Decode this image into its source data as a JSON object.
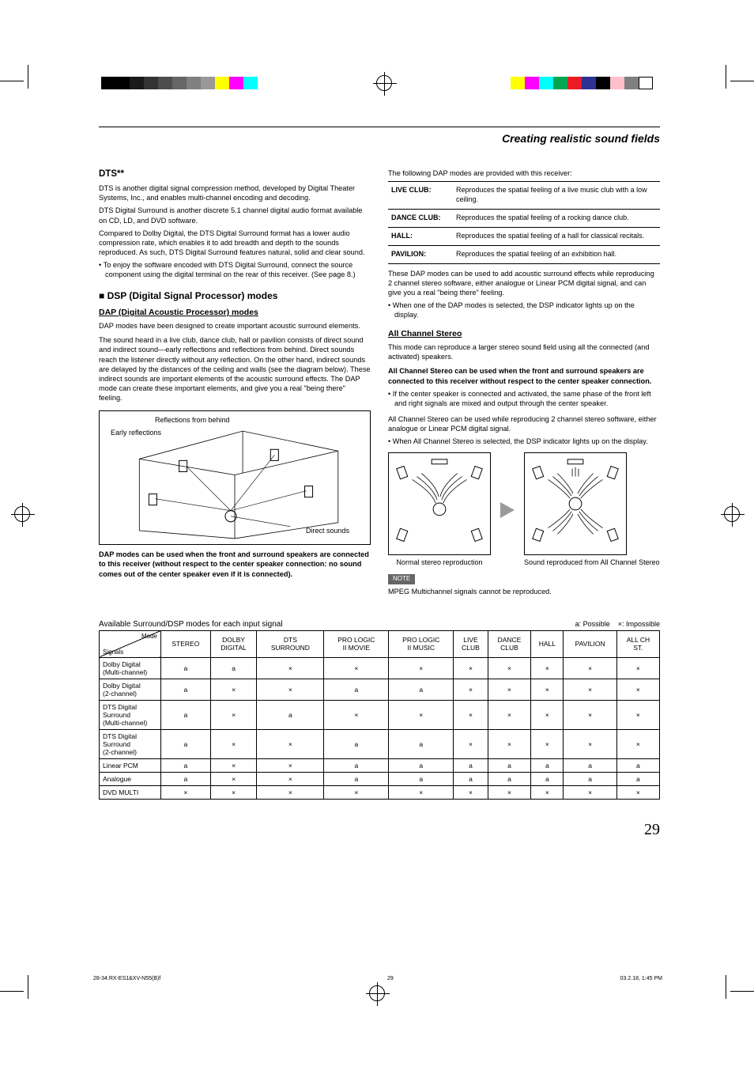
{
  "section_title": "Creating realistic sound fields",
  "left": {
    "dts_heading": "DTS**",
    "dts_p1": "DTS is another digital signal compression method, developed by Digital Theater Systems, Inc., and enables multi-channel encoding and decoding.",
    "dts_p2": "DTS Digital Surround is another discrete  5.1 channel digital audio format available on CD, LD, and DVD software.",
    "dts_p3": "Compared to Dolby Digital, the DTS Digital Surround format has a lower audio compression rate, which enables it to add breadth and depth to the sounds reproduced. As such, DTS Digital Surround features natural, solid and clear sound.",
    "dts_bullet": "• To enjoy the software encoded with DTS Digital Surround, connect the source component using the digital terminal on the rear of this receiver. (See page 8.)",
    "dsp_heading": "■ DSP (Digital Signal Processor) modes",
    "dap_heading": "DAP (Digital Acoustic Processor) modes",
    "dap_p1": "DAP modes have been designed to create important acoustic surround elements.",
    "dap_p2": "The sound heard in a live club, dance club, hall or pavilion consists of direct sound and indirect sound—early reflections and reflections from behind. Direct sounds reach the listener directly without any reflection. On the other hand, indirect sounds are delayed by the distances of the ceiling and walls (see the diagram below). These indirect sounds are important elements of the acoustic surround effects. The DAP mode can create these important elements, and give you a real \"being there\" feeling.",
    "diagram_labels": {
      "refl_behind": "Reflections from behind",
      "early_refl": "Early reflections",
      "direct": "Direct sounds"
    },
    "dap_note": "DAP modes can be used when the front and surround speakers are connected to this receiver (without respect to the center speaker connection: no sound comes out of the center speaker even if it is connected)."
  },
  "right": {
    "intro": "The following DAP modes are provided with this receiver:",
    "modes": [
      {
        "name": "LIVE CLUB:",
        "desc": "Reproduces the spatial feeling of a live music club with a low ceiling."
      },
      {
        "name": "DANCE CLUB:",
        "desc": "Reproduces the spatial feeling of a rocking dance club."
      },
      {
        "name": "HALL:",
        "desc": "Reproduces the spatial feeling of a hall for classical recitals."
      },
      {
        "name": "PAVILION:",
        "desc": "Reproduces the spatial feeling of an exhibition hall."
      }
    ],
    "modes_after": "These DAP modes can be used to add acoustic surround effects while reproducing 2 channel stereo software, either analogue or Linear PCM digital signal, and can give you a real \"being there\" feeling.",
    "modes_bullet": "• When one of the DAP modes is selected, the DSP indicator lights up on the display.",
    "acs_heading": "All Channel Stereo",
    "acs_p1": "This mode can reproduce a larger stereo sound field using all the connected (and activated) speakers.",
    "acs_bold": "All Channel Stereo can be used when the front and surround speakers are connected to this receiver without respect to the center speaker connection.",
    "acs_bullet1": "• If the center speaker is connected and activated, the same phase of the front left and right signals are mixed and output through the center speaker.",
    "acs_p2": "All Channel Stereo can be used while reproducing 2 channel stereo software, either analogue or Linear PCM digital signal.",
    "acs_bullet2": "• When All Channel Stereo is selected, the DSP indicator lights up on the display.",
    "caption_left": "Normal stereo reproduction",
    "caption_right": "Sound reproduced from All Channel Stereo",
    "note_label": "NOTE",
    "note_text": "MPEG Multichannel signals cannot be reproduced."
  },
  "compat": {
    "title": "Available Surround/DSP modes for each input signal",
    "legend_possible": "a: Possible",
    "legend_impossible": "×: Impossible",
    "diag_top": "Mode",
    "diag_bottom": "Signals",
    "columns": [
      "STEREO",
      "DOLBY DIGITAL",
      "DTS SURROUND",
      "PRO LOGIC II MOVIE",
      "PRO LOGIC II MUSIC",
      "LIVE CLUB",
      "DANCE CLUB",
      "HALL",
      "PAVILION",
      "ALL CH ST."
    ],
    "rows": [
      {
        "label": "Dolby Digital (Multi-channel)",
        "cells": [
          "a",
          "a",
          "×",
          "×",
          "×",
          "×",
          "×",
          "×",
          "×",
          "×"
        ]
      },
      {
        "label": "Dolby Digital (2-channel)",
        "cells": [
          "a",
          "×",
          "×",
          "a",
          "a",
          "×",
          "×",
          "×",
          "×",
          "×"
        ]
      },
      {
        "label": "DTS Digital Surround (Multi-channel)",
        "cells": [
          "a",
          "×",
          "a",
          "×",
          "×",
          "×",
          "×",
          "×",
          "×",
          "×"
        ]
      },
      {
        "label": "DTS Digital Surround (2-channel)",
        "cells": [
          "a",
          "×",
          "×",
          "a",
          "a",
          "×",
          "×",
          "×",
          "×",
          "×"
        ]
      },
      {
        "label": "Linear PCM",
        "cells": [
          "a",
          "×",
          "×",
          "a",
          "a",
          "a",
          "a",
          "a",
          "a",
          "a"
        ]
      },
      {
        "label": "Analogue",
        "cells": [
          "a",
          "×",
          "×",
          "a",
          "a",
          "a",
          "a",
          "a",
          "a",
          "a"
        ]
      },
      {
        "label": "DVD MULTI",
        "cells": [
          "×",
          "×",
          "×",
          "×",
          "×",
          "×",
          "×",
          "×",
          "×",
          "×"
        ]
      }
    ]
  },
  "page_number": "29",
  "footer": {
    "file": "28-34.RX-ES1&XV-N55(B)f",
    "page": "29",
    "date": "03.2.18, 1:45 PM"
  },
  "print_colors_left": [
    "#000000",
    "#000000",
    "#1a1a1a",
    "#333333",
    "#4d4d4d",
    "#666666",
    "#808080",
    "#999999",
    "#ffff00",
    "#ff00ff",
    "#00ffff"
  ],
  "print_colors_right": [
    "#ffff00",
    "#ff00ff",
    "#00ffff",
    "#00a651",
    "#ed1c24",
    "#2e3192",
    "#000000",
    "#ffc0cb",
    "#808080",
    "#ffffff"
  ],
  "glyph": {
    "possible": "a",
    "impossible": "×"
  }
}
